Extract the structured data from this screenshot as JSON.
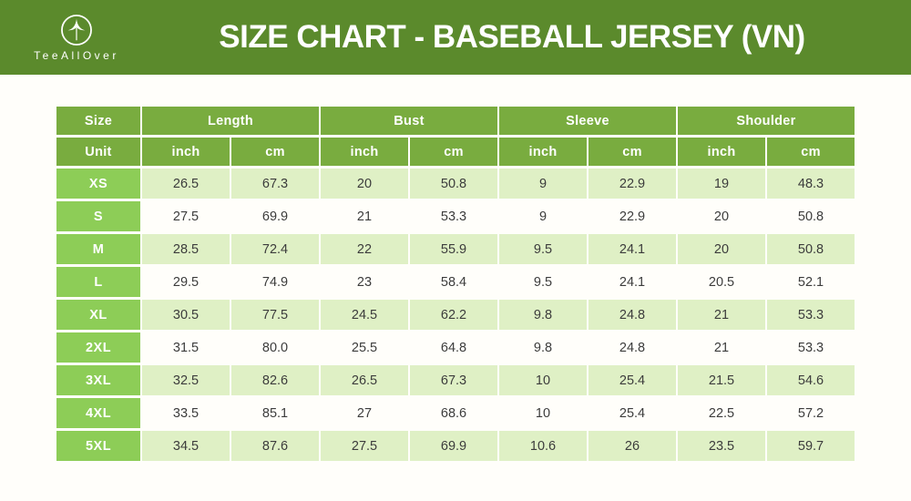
{
  "brand": {
    "name": "TeeAllOver",
    "logo_icon": "upward-dart-in-circle"
  },
  "header": {
    "title": "SIZE CHART - BASEBALL JERSEY (VN)"
  },
  "colors": {
    "banner_green": "#5b8a2c",
    "header_green": "#79ac3f",
    "size_green": "#8dcd57",
    "row_green": "#dff0c5",
    "row_white": "#fffefa",
    "text_dark": "#3c3c3c",
    "title_text": "#ffffff"
  },
  "chart_data": {
    "type": "table",
    "title": "SIZE CHART - BASEBALL JERSEY (VN)",
    "group_headers": [
      {
        "label": "Size",
        "span": 1
      },
      {
        "label": "Length",
        "span": 2
      },
      {
        "label": "Bust",
        "span": 2
      },
      {
        "label": "Sleeve",
        "span": 2
      },
      {
        "label": "Shoulder",
        "span": 2
      }
    ],
    "unit_row": [
      "Unit",
      "inch",
      "cm",
      "inch",
      "cm",
      "inch",
      "cm",
      "inch",
      "cm"
    ],
    "columns": [
      "Size",
      "Length (inch)",
      "Length (cm)",
      "Bust (inch)",
      "Bust (cm)",
      "Sleeve (inch)",
      "Sleeve (cm)",
      "Shoulder (inch)",
      "Shoulder (cm)"
    ],
    "rows": [
      {
        "size": "XS",
        "values": [
          "26.5",
          "67.3",
          "20",
          "50.8",
          "9",
          "22.9",
          "19",
          "48.3"
        ]
      },
      {
        "size": "S",
        "values": [
          "27.5",
          "69.9",
          "21",
          "53.3",
          "9",
          "22.9",
          "20",
          "50.8"
        ]
      },
      {
        "size": "M",
        "values": [
          "28.5",
          "72.4",
          "22",
          "55.9",
          "9.5",
          "24.1",
          "20",
          "50.8"
        ]
      },
      {
        "size": "L",
        "values": [
          "29.5",
          "74.9",
          "23",
          "58.4",
          "9.5",
          "24.1",
          "20.5",
          "52.1"
        ]
      },
      {
        "size": "XL",
        "values": [
          "30.5",
          "77.5",
          "24.5",
          "62.2",
          "9.8",
          "24.8",
          "21",
          "53.3"
        ]
      },
      {
        "size": "2XL",
        "values": [
          "31.5",
          "80.0",
          "25.5",
          "64.8",
          "9.8",
          "24.8",
          "21",
          "53.3"
        ]
      },
      {
        "size": "3XL",
        "values": [
          "32.5",
          "82.6",
          "26.5",
          "67.3",
          "10",
          "25.4",
          "21.5",
          "54.6"
        ]
      },
      {
        "size": "4XL",
        "values": [
          "33.5",
          "85.1",
          "27",
          "68.6",
          "10",
          "25.4",
          "22.5",
          "57.2"
        ]
      },
      {
        "size": "5XL",
        "values": [
          "34.5",
          "87.6",
          "27.5",
          "69.9",
          "10.6",
          "26",
          "23.5",
          "59.7"
        ]
      }
    ]
  }
}
